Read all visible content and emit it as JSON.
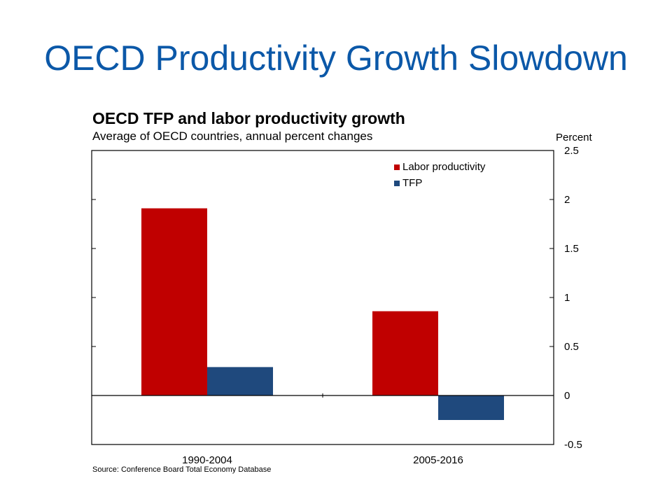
{
  "slide": {
    "title": "OECD Productivity Growth Slowdown"
  },
  "chart_data": {
    "type": "bar",
    "title": "OECD TFP and labor productivity growth",
    "subtitle": "Average of OECD countries, annual percent changes",
    "ylabel": "Percent",
    "categories": [
      "1990-2004",
      "2005-2016"
    ],
    "series": [
      {
        "name": "Labor productivity",
        "color": "#c00000",
        "values": [
          1.91,
          0.86
        ]
      },
      {
        "name": "TFP",
        "color": "#1f497d",
        "values": [
          0.29,
          -0.25
        ]
      }
    ],
    "ylim": [
      -0.5,
      2.5
    ],
    "yticks": [
      -0.5,
      0,
      0.5,
      1,
      1.5,
      2,
      2.5
    ],
    "ytick_labels": [
      "-0.5",
      "0",
      "0.5",
      "1",
      "1.5",
      "2",
      "2.5"
    ],
    "y_axis_side": "right",
    "legend_position": "top-right",
    "grid": false,
    "source": "Source: Conference Board Total Economy Database"
  }
}
